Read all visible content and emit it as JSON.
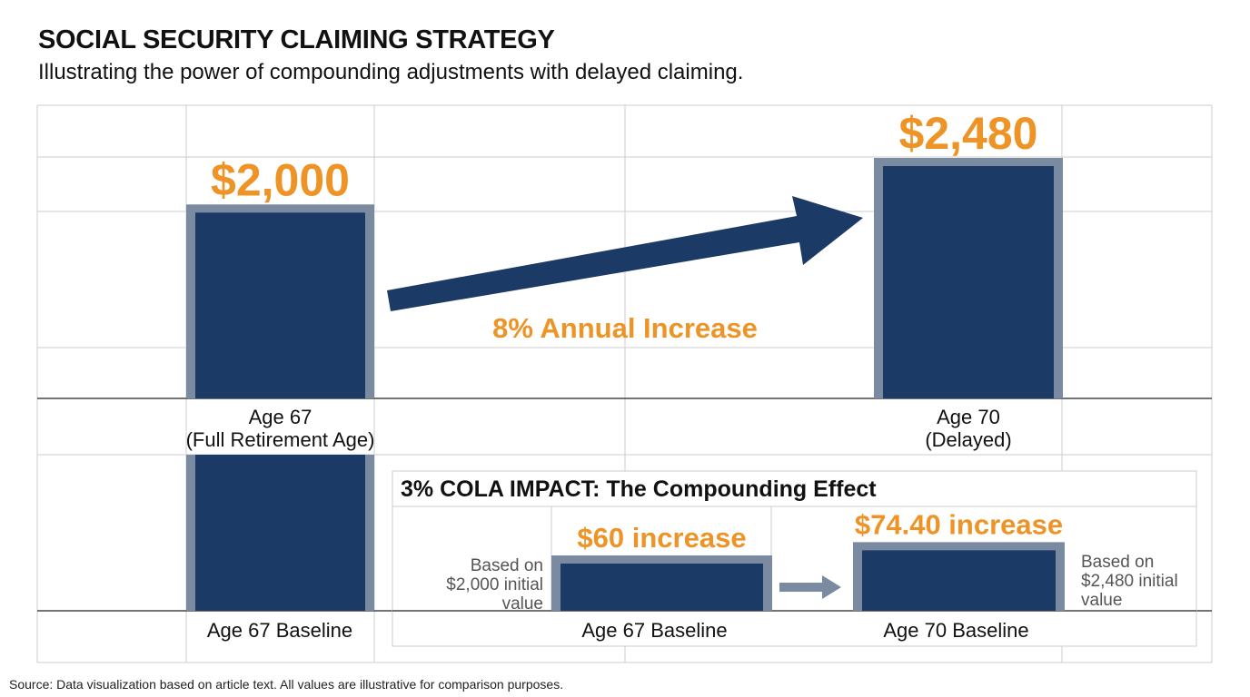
{
  "header": {
    "title": "SOCIAL SECURITY CLAIMING STRATEGY",
    "subtitle": "Illustrating the power of compounding adjustments with delayed claiming."
  },
  "chart_data": [
    {
      "type": "bar",
      "categories": [
        [
          "Age 67",
          "(Full Retirement Age)"
        ],
        [
          "Age 70",
          "(Delayed)"
        ]
      ],
      "values": [
        2000,
        2480
      ],
      "data_labels": [
        "$2,000",
        "$2,480"
      ],
      "annotation": "8% Annual Increase",
      "ylim": [
        0,
        2500
      ]
    },
    {
      "type": "bar",
      "title": "3% COLA IMPACT: The Compounding Effect",
      "categories": [
        "Age 67 Baseline",
        "Age 67 Baseline",
        "Age 70 Baseline"
      ],
      "values": [
        2000,
        60,
        74.4
      ],
      "data_labels": [
        "",
        "$60 increase",
        "$74.40 increase"
      ],
      "notes": [
        [
          "Based on",
          "$2,000 initial",
          "value"
        ],
        [
          "Based on",
          "$2,480 initial",
          "value"
        ]
      ]
    }
  ],
  "footer": {
    "source": "Source: Data visualization based on article text. All values are illustrative for comparison purposes."
  },
  "colors": {
    "bar": "#1c3a66",
    "bar_border": "#7a8aa0",
    "accent": "#ee9427",
    "arrow": "#1c3a66",
    "small_arrow": "#7a8aa0",
    "grid": "#cccccc"
  }
}
